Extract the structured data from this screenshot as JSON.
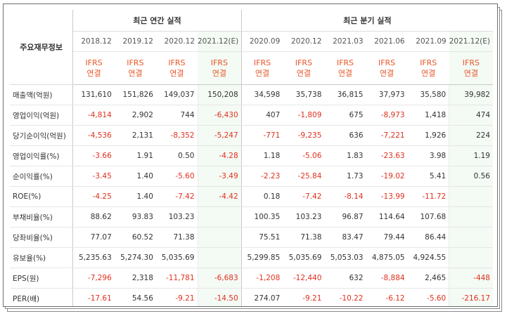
{
  "table": {
    "label_header": "주요재무정보",
    "annual_header": "최근 연간 실적",
    "quarterly_header": "최근 분기 실적",
    "annual_periods": [
      "2018.12",
      "2019.12",
      "2020.12",
      "2021.12(E)"
    ],
    "quarterly_periods": [
      "2020.09",
      "2020.12",
      "2021.03",
      "2021.06",
      "2021.09",
      "2021.12(E)"
    ],
    "basis_top": "IFRS",
    "basis_bottom": "연결",
    "rows": [
      {
        "label": "매출액(억원)",
        "values": [
          "131,610",
          "151,826",
          "149,037",
          "150,208",
          "34,598",
          "35,738",
          "36,815",
          "37,973",
          "35,580",
          "39,982"
        ]
      },
      {
        "label": "영업이익(억원)",
        "values": [
          "-4,814",
          "2,902",
          "744",
          "-6,430",
          "407",
          "-1,809",
          "675",
          "-8,973",
          "1,418",
          "474"
        ]
      },
      {
        "label": "당기순이익(억원)",
        "values": [
          "-4,536",
          "2,131",
          "-8,352",
          "-5,247",
          "-771",
          "-9,235",
          "636",
          "-7,221",
          "1,926",
          "224"
        ]
      },
      {
        "label": "영업이익률(%)",
        "values": [
          "-3.66",
          "1.91",
          "0.50",
          "-4.28",
          "1.18",
          "-5.06",
          "1.83",
          "-23.63",
          "3.98",
          "1.19"
        ]
      },
      {
        "label": "순이익률(%)",
        "values": [
          "-3.45",
          "1.40",
          "-5.60",
          "-3.49",
          "-2.23",
          "-25.84",
          "1.73",
          "-19.02",
          "5.41",
          "0.56"
        ]
      },
      {
        "label": "ROE(%)",
        "values": [
          "-4.25",
          "1.40",
          "-7.42",
          "-4.42",
          "0.18",
          "-7.42",
          "-8.14",
          "-13.99",
          "-11.72",
          ""
        ]
      },
      {
        "label": "부채비율(%)",
        "values": [
          "88.62",
          "93.83",
          "103.23",
          "",
          "100.35",
          "103.23",
          "96.87",
          "114.64",
          "107.68",
          ""
        ]
      },
      {
        "label": "당좌비율(%)",
        "values": [
          "77.07",
          "60.52",
          "71.38",
          "",
          "75.51",
          "71.38",
          "83.47",
          "79.44",
          "86.44",
          ""
        ]
      },
      {
        "label": "유보율(%)",
        "values": [
          "5,235.63",
          "5,274.30",
          "5,035.69",
          "",
          "5,299.85",
          "5,035.69",
          "5,053.03",
          "4,875.05",
          "4,924.55",
          ""
        ]
      },
      {
        "label": "EPS(원)",
        "values": [
          "-7,296",
          "2,318",
          "-11,781",
          "-6,683",
          "-1,208",
          "-12,440",
          "632",
          "-8,884",
          "2,465",
          "-448"
        ]
      },
      {
        "label": "PER(배)",
        "values": [
          "-17.61",
          "54.56",
          "-9.21",
          "-14.50",
          "274.07",
          "-9.21",
          "-10.22",
          "-6.12",
          "-5.60",
          "-216.17"
        ]
      }
    ]
  },
  "colors": {
    "negative": "#e0301e",
    "basis": "#e8562a",
    "estimate_bg": "#f4faf4"
  }
}
